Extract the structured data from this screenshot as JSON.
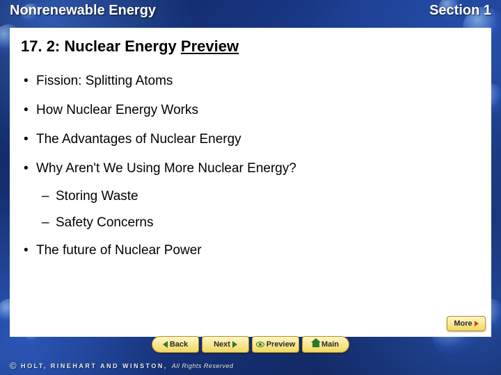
{
  "header": {
    "left": "Nonrenewable Energy",
    "right": "Section 1"
  },
  "title": {
    "main": "17. 2: Nuclear Energy ",
    "preview_word": "Preview"
  },
  "bullets": [
    {
      "level": 1,
      "text": "Fission: Splitting Atoms"
    },
    {
      "level": 1,
      "text": "How Nuclear Energy Works"
    },
    {
      "level": 1,
      "text": "The Advantages of Nuclear Energy"
    },
    {
      "level": 1,
      "text": "Why Aren't We Using More Nuclear Energy?"
    },
    {
      "level": 2,
      "text": "Storing Waste"
    },
    {
      "level": 2,
      "text": "Safety Concerns"
    },
    {
      "level": 1,
      "text": "The future of Nuclear Power"
    }
  ],
  "buttons": {
    "more": "More",
    "back": "Back",
    "next": "Next",
    "preview": "Preview",
    "main": "Main"
  },
  "copyright": {
    "symbol": "©",
    "brand": "HOLT, RINEHART AND WINSTON,",
    "rest": "All Rights Reserved"
  },
  "colors": {
    "bg_dark": "#0a1a4a",
    "content_bg": "#ffffff",
    "btn_grad_top": "#fff6c8",
    "btn_grad_bottom": "#f0d860",
    "btn_border": "#b89020",
    "arrow_orange": "#d04000",
    "arrow_green": "#2a7a2a",
    "text": "#000000",
    "header_text": "#ffffff"
  }
}
